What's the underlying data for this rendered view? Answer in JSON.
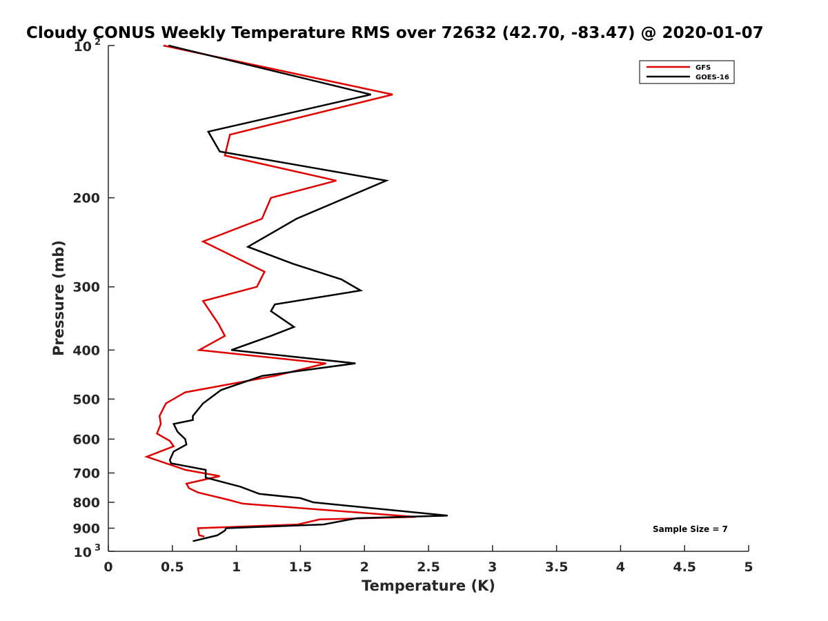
{
  "chart_data": {
    "type": "line",
    "title": "Cloudy CONUS Weekly Temperature RMS over 72632 (42.70, -83.47) @ 2020-01-07",
    "xlabel": "Temperature (K)",
    "ylabel": "Pressure (mb)",
    "xlim": [
      0,
      5
    ],
    "ylim": [
      100,
      1000
    ],
    "y_scale": "log",
    "y_reversed": true,
    "x_ticks": [
      "0",
      "0.5",
      "1",
      "1.5",
      "2",
      "2.5",
      "3",
      "3.5",
      "4",
      "4.5",
      "5"
    ],
    "y_ticks": [
      {
        "value": 100,
        "base": "10",
        "exp": "2"
      },
      {
        "value": 200,
        "label": "200"
      },
      {
        "value": 300,
        "label": "300"
      },
      {
        "value": 400,
        "label": "400"
      },
      {
        "value": 500,
        "label": "500"
      },
      {
        "value": 600,
        "label": "600"
      },
      {
        "value": 700,
        "label": "700"
      },
      {
        "value": 800,
        "label": "800"
      },
      {
        "value": 900,
        "label": "900"
      },
      {
        "value": 1000,
        "base": "10",
        "exp": "3"
      }
    ],
    "grid": false,
    "legend_position": "top-right",
    "annotation": "Sample Size = 7",
    "series": [
      {
        "name": "GFS",
        "color": "#e00000",
        "points": [
          [
            0.43,
            100
          ],
          [
            2.22,
            125
          ],
          [
            0.95,
            150
          ],
          [
            0.91,
            165
          ],
          [
            1.78,
            185
          ],
          [
            1.27,
            200
          ],
          [
            1.2,
            220
          ],
          [
            0.74,
            244
          ],
          [
            1.22,
            280
          ],
          [
            1.16,
            300
          ],
          [
            0.74,
            320
          ],
          [
            0.86,
            355
          ],
          [
            0.91,
            375
          ],
          [
            0.71,
            400
          ],
          [
            1.7,
            425
          ],
          [
            1.3,
            450
          ],
          [
            0.6,
            485
          ],
          [
            0.45,
            510
          ],
          [
            0.4,
            540
          ],
          [
            0.41,
            560
          ],
          [
            0.38,
            585
          ],
          [
            0.48,
            605
          ],
          [
            0.51,
            620
          ],
          [
            0.3,
            650
          ],
          [
            0.6,
            690
          ],
          [
            0.87,
            710
          ],
          [
            0.61,
            735
          ],
          [
            0.63,
            750
          ],
          [
            0.7,
            765
          ],
          [
            0.93,
            790
          ],
          [
            1.05,
            805
          ],
          [
            2.4,
            855
          ],
          [
            1.65,
            865
          ],
          [
            1.48,
            885
          ],
          [
            0.7,
            900
          ],
          [
            0.71,
            930
          ],
          [
            0.75,
            935
          ]
        ]
      },
      {
        "name": "GOES-16",
        "color": "#000000",
        "points": [
          [
            0.47,
            100
          ],
          [
            2.05,
            125
          ],
          [
            0.78,
            148
          ],
          [
            0.87,
            162
          ],
          [
            2.17,
            185
          ],
          [
            1.47,
            220
          ],
          [
            1.09,
            250
          ],
          [
            1.44,
            270
          ],
          [
            1.82,
            290
          ],
          [
            1.97,
            305
          ],
          [
            1.3,
            325
          ],
          [
            1.27,
            335
          ],
          [
            1.45,
            360
          ],
          [
            1.27,
            375
          ],
          [
            0.96,
            400
          ],
          [
            1.93,
            425
          ],
          [
            1.2,
            450
          ],
          [
            0.88,
            480
          ],
          [
            0.74,
            510
          ],
          [
            0.66,
            540
          ],
          [
            0.66,
            550
          ],
          [
            0.51,
            560
          ],
          [
            0.54,
            580
          ],
          [
            0.6,
            600
          ],
          [
            0.61,
            615
          ],
          [
            0.51,
            635
          ],
          [
            0.48,
            660
          ],
          [
            0.49,
            670
          ],
          [
            0.76,
            690
          ],
          [
            0.76,
            715
          ],
          [
            1.03,
            745
          ],
          [
            1.18,
            770
          ],
          [
            1.5,
            785
          ],
          [
            1.6,
            800
          ],
          [
            2.65,
            850
          ],
          [
            1.94,
            860
          ],
          [
            1.68,
            885
          ],
          [
            0.92,
            900
          ],
          [
            0.91,
            910
          ],
          [
            0.85,
            930
          ],
          [
            0.66,
            955
          ]
        ]
      }
    ]
  }
}
